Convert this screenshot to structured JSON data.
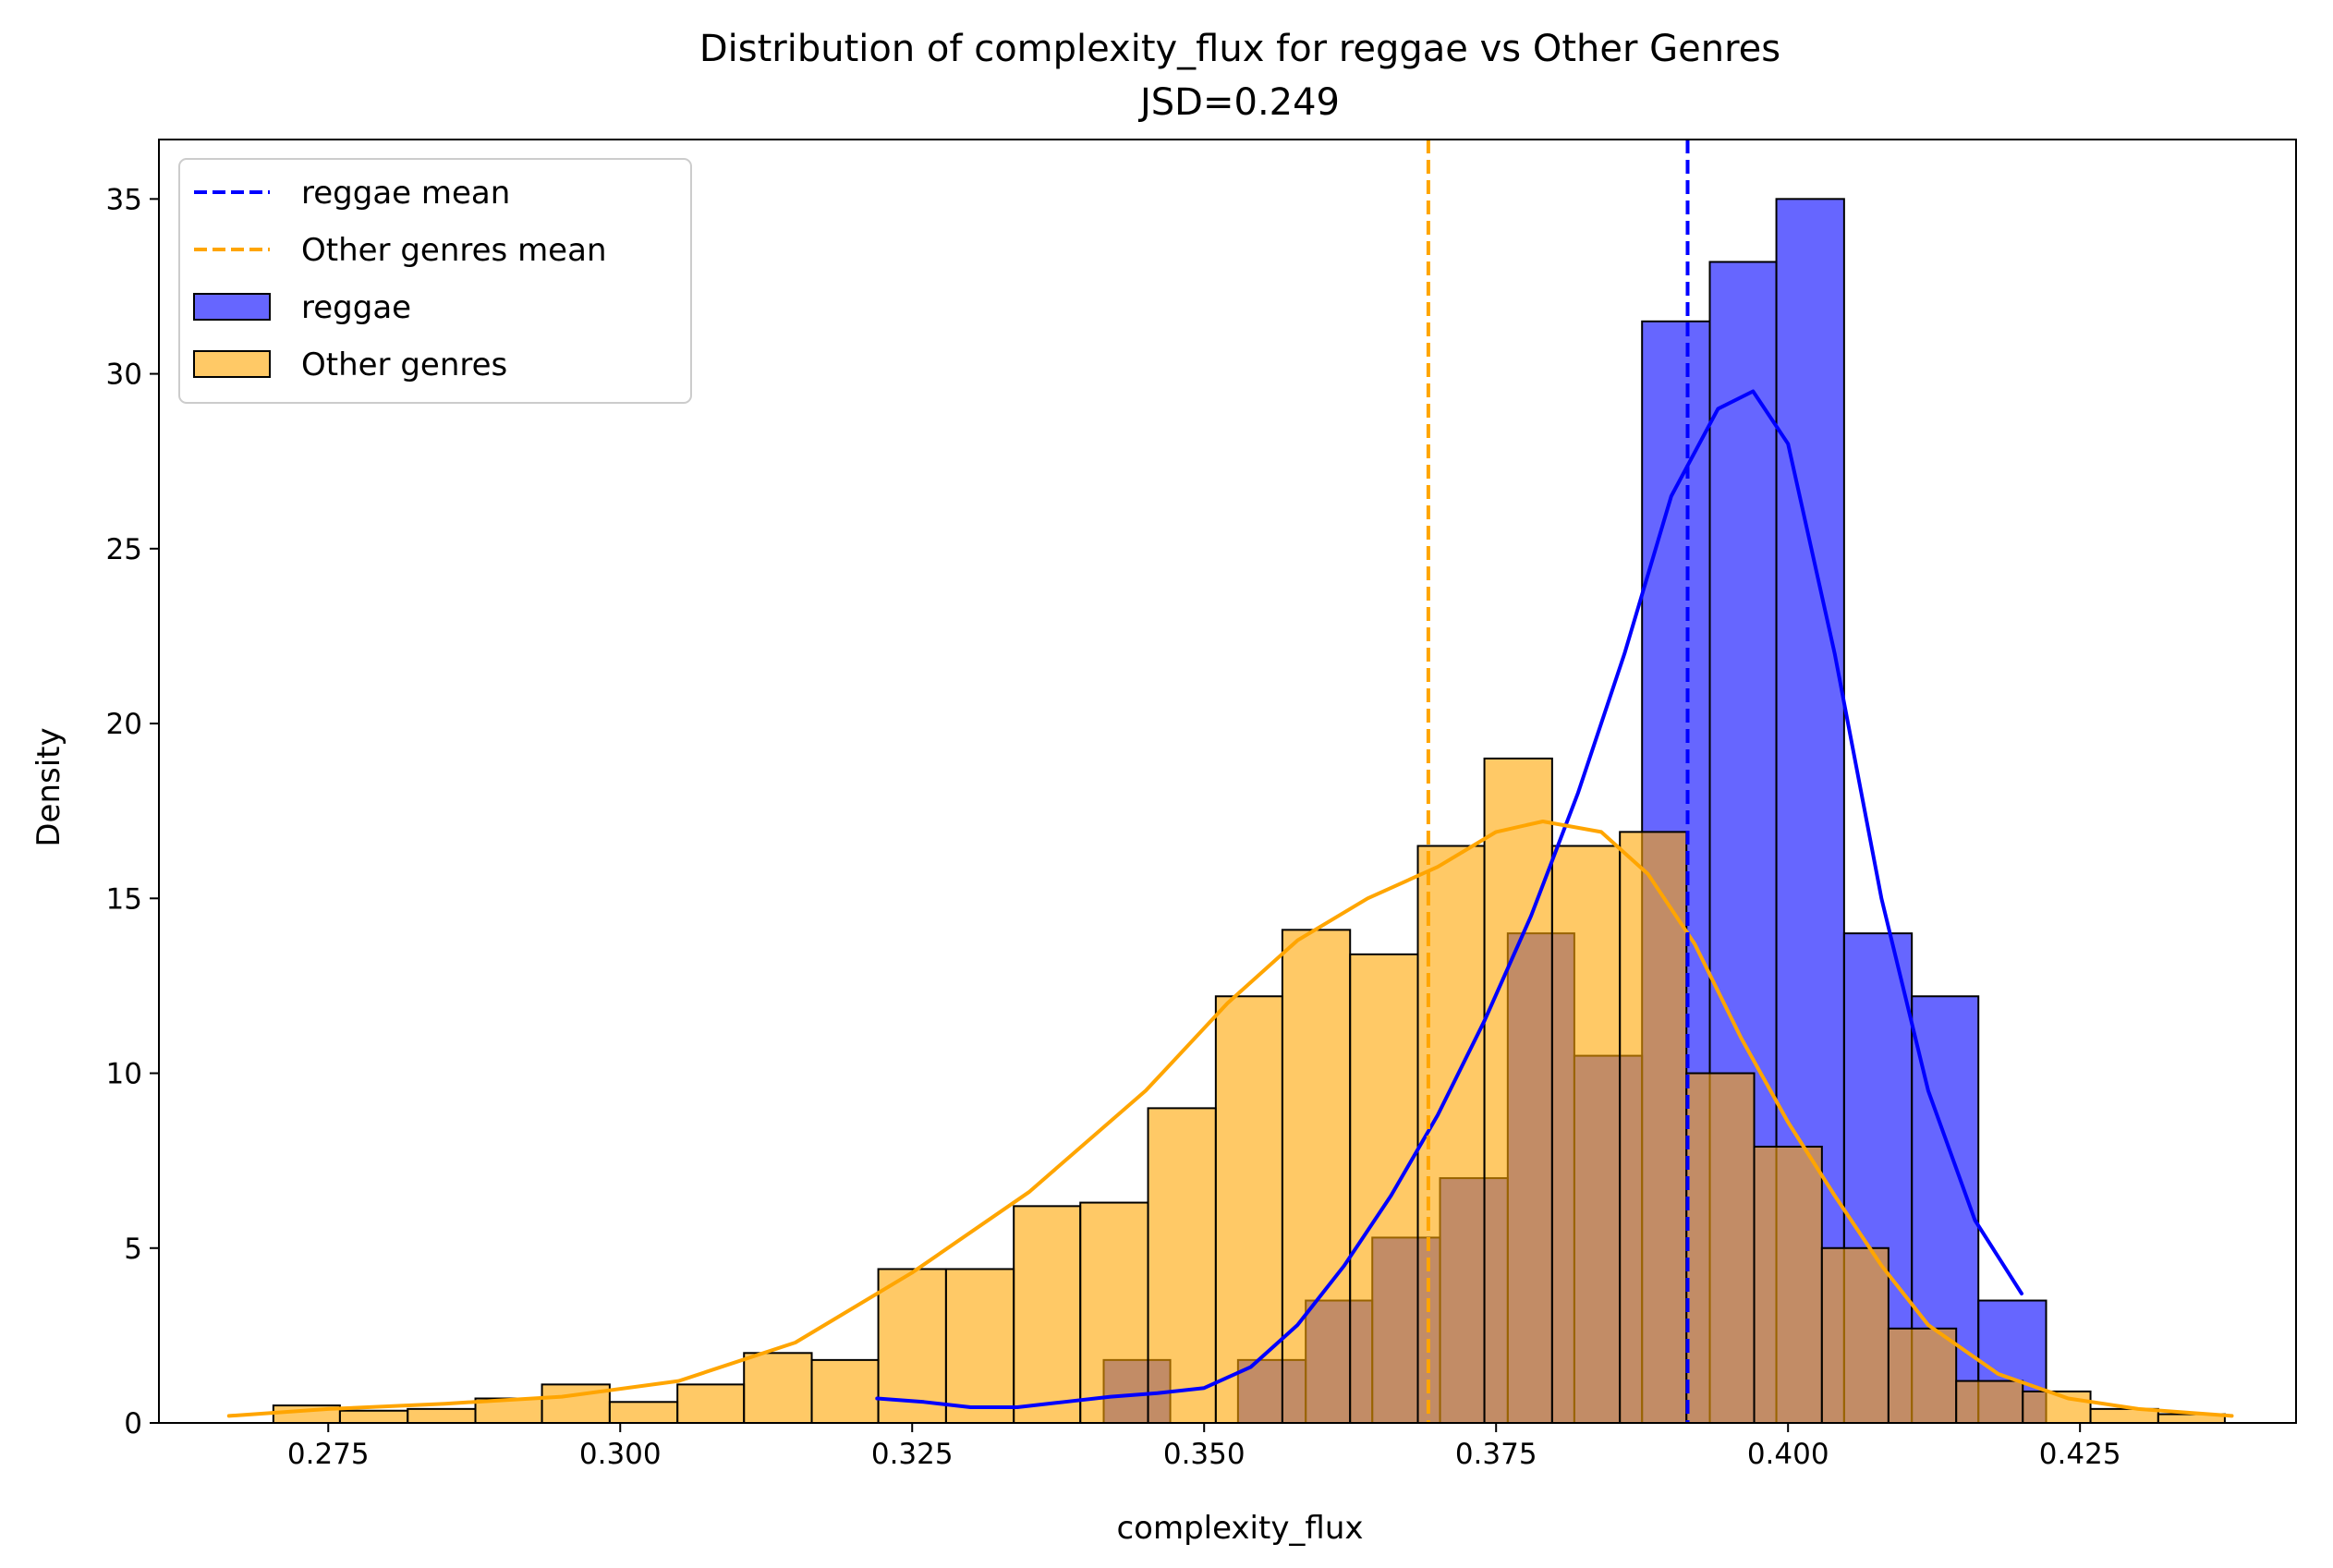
{
  "chart_data": {
    "type": "histogram",
    "title": "Distribution of complexity_flux for reggae vs Other Genres",
    "subtitle": "JSD=0.249",
    "xlabel": "complexity_flux",
    "ylabel": "Density",
    "xlim": [
      0.2605,
      0.4435
    ],
    "ylim": [
      0,
      36.7
    ],
    "xticks": [
      0.275,
      0.3,
      0.325,
      0.35,
      0.375,
      0.4,
      0.425
    ],
    "xtick_labels": [
      "0.275",
      "0.300",
      "0.325",
      "0.350",
      "0.375",
      "0.400",
      "0.425"
    ],
    "yticks": [
      0,
      5,
      10,
      15,
      20,
      25,
      30,
      35
    ],
    "ytick_labels": [
      "0",
      "5",
      "10",
      "15",
      "20",
      "25",
      "30",
      "35"
    ],
    "grid": false,
    "legend_position": "top-left",
    "legend": [
      {
        "label": "reggae mean",
        "kind": "dashed-line",
        "color": "#0000ff"
      },
      {
        "label": "Other genres mean",
        "kind": "dashed-line",
        "color": "#ffa500"
      },
      {
        "label": "reggae",
        "kind": "patch",
        "color": "#6666ff"
      },
      {
        "label": "Other genres",
        "kind": "patch",
        "color": "#ffc966"
      }
    ],
    "series": [
      {
        "name": "reggae",
        "color": "#0000ff",
        "fill_opacity": 0.6,
        "bin_edges": [
          0.3183,
          0.3241,
          0.3298,
          0.3356,
          0.3414,
          0.3471,
          0.3529,
          0.3587,
          0.3644,
          0.3702,
          0.376,
          0.3817,
          0.3875,
          0.3933,
          0.399,
          0.4048,
          0.4106,
          0.4163,
          0.4221
        ],
        "density": [
          0.0,
          0.0,
          0.0,
          0.0,
          1.8,
          0.0,
          1.8,
          3.5,
          5.3,
          7.0,
          14.0,
          10.5,
          31.5,
          33.2,
          35.0,
          14.0,
          12.2,
          3.5
        ],
        "kde_x": [
          0.322,
          0.326,
          0.33,
          0.334,
          0.338,
          0.342,
          0.346,
          0.35,
          0.354,
          0.358,
          0.362,
          0.366,
          0.37,
          0.374,
          0.378,
          0.382,
          0.386,
          0.39,
          0.394,
          0.397,
          0.4,
          0.404,
          0.408,
          0.412,
          0.416,
          0.42
        ],
        "kde_y": [
          0.7,
          0.6,
          0.45,
          0.45,
          0.6,
          0.75,
          0.85,
          1.0,
          1.6,
          2.8,
          4.5,
          6.5,
          8.8,
          11.5,
          14.5,
          18.0,
          22.0,
          26.5,
          29.0,
          29.5,
          28.0,
          22.0,
          15.0,
          9.5,
          5.8,
          3.7
        ],
        "mean": 0.3914
      },
      {
        "name": "Other genres",
        "color": "#ffa500",
        "fill_opacity": 0.6,
        "bin_edges": [
          0.2703,
          0.276,
          0.2818,
          0.2876,
          0.2933,
          0.2991,
          0.3049,
          0.3106,
          0.3164,
          0.3221,
          0.3279,
          0.3337,
          0.3394,
          0.3452,
          0.351,
          0.3567,
          0.3625,
          0.3683,
          0.374,
          0.3798,
          0.3856,
          0.3913,
          0.3971,
          0.4029,
          0.4086,
          0.4144,
          0.4201,
          0.4259,
          0.4317,
          0.4374
        ],
        "density": [
          0.5,
          0.35,
          0.4,
          0.7,
          1.1,
          0.6,
          1.1,
          2.0,
          1.8,
          4.4,
          4.4,
          6.2,
          6.3,
          9.0,
          12.2,
          14.1,
          13.4,
          16.5,
          19.0,
          16.5,
          16.9,
          10.0,
          7.9,
          5.0,
          2.7,
          1.2,
          0.9,
          0.4,
          0.25
        ],
        "kde_x": [
          0.2665,
          0.275,
          0.285,
          0.295,
          0.305,
          0.315,
          0.325,
          0.335,
          0.345,
          0.352,
          0.358,
          0.364,
          0.37,
          0.375,
          0.379,
          0.384,
          0.388,
          0.392,
          0.396,
          0.4,
          0.404,
          0.408,
          0.412,
          0.418,
          0.424,
          0.43,
          0.438
        ],
        "kde_y": [
          0.2,
          0.4,
          0.55,
          0.75,
          1.2,
          2.3,
          4.3,
          6.6,
          9.5,
          12.0,
          13.8,
          15.0,
          15.9,
          16.9,
          17.2,
          16.9,
          15.7,
          13.7,
          11.0,
          8.6,
          6.5,
          4.5,
          2.8,
          1.4,
          0.7,
          0.4,
          0.2
        ],
        "mean": 0.3692
      }
    ]
  }
}
